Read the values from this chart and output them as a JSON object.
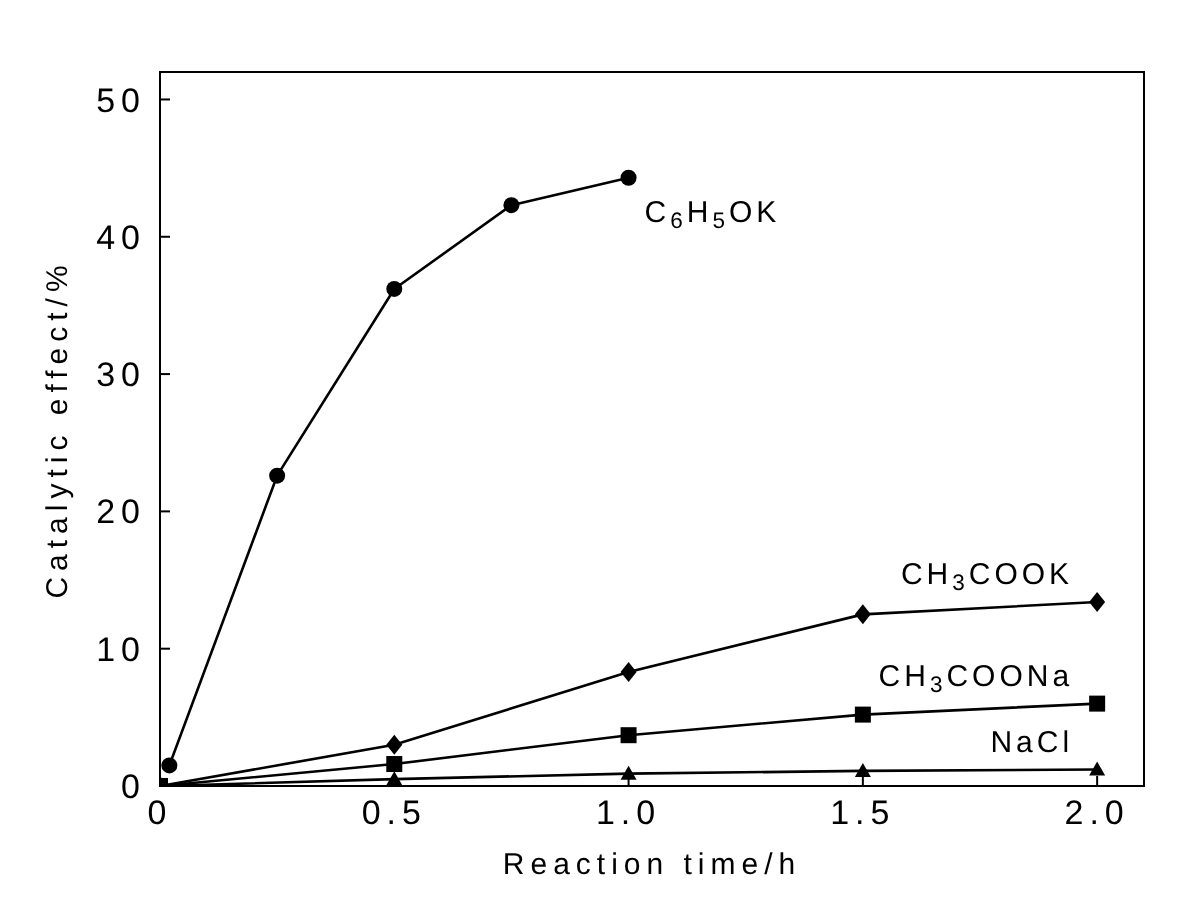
{
  "chart_data": {
    "type": "line",
    "xlabel": "Reaction time/h",
    "ylabel": "Catalytic effect/%",
    "xlim": [
      0,
      2.1
    ],
    "ylim": [
      0,
      52
    ],
    "xticks": [
      0,
      0.5,
      {
        "value": 1,
        "label": "1.0"
      },
      1.5,
      {
        "value": 2,
        "label": "2.0"
      }
    ],
    "yticks": [
      0,
      10,
      20,
      30,
      40,
      50
    ],
    "series": [
      {
        "name": "C$_{6}$H$_{5}$OK",
        "color": "#000000",
        "marker": "circle",
        "x": [
          0.02,
          0.25,
          0.5,
          0.75,
          1.0
        ],
        "values": [
          1.5,
          22.6,
          36.2,
          42.3,
          44.3
        ]
      },
      {
        "name": "CH$_{3}$COOK",
        "color": "#000000",
        "marker": "diamond",
        "x": [
          0,
          0.5,
          1.0,
          1.5,
          2.0
        ],
        "values": [
          0,
          3.0,
          8.3,
          12.5,
          13.4
        ]
      },
      {
        "name": "CH$_{3}$COONa",
        "color": "#000000",
        "marker": "square",
        "x": [
          0,
          0.5,
          1.0,
          1.5,
          2.0
        ],
        "values": [
          0,
          1.6,
          3.7,
          5.2,
          6.0
        ]
      },
      {
        "name": "NaCl",
        "color": "#000000",
        "marker": "triangle",
        "x": [
          0,
          0.5,
          1.0,
          1.5,
          2.0
        ],
        "values": [
          0,
          0.5,
          0.9,
          1.1,
          1.2
        ]
      }
    ]
  }
}
